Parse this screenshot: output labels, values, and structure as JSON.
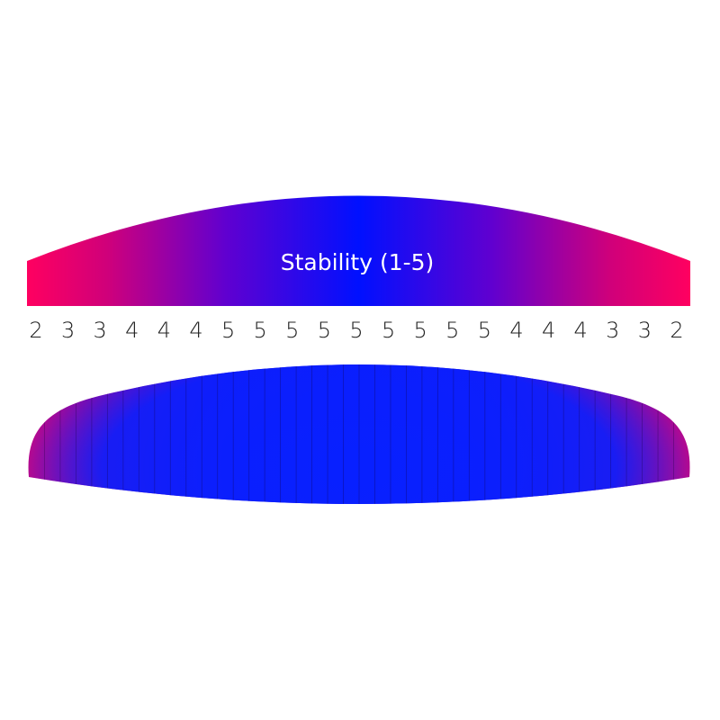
{
  "title": "Stability (1-5)",
  "cells": [
    "2",
    "3",
    "3",
    "4",
    "4",
    "4",
    "5",
    "5",
    "5",
    "5",
    "5",
    "5",
    "5",
    "5",
    "5",
    "4",
    "4",
    "4",
    "3",
    "3",
    "2"
  ]
}
